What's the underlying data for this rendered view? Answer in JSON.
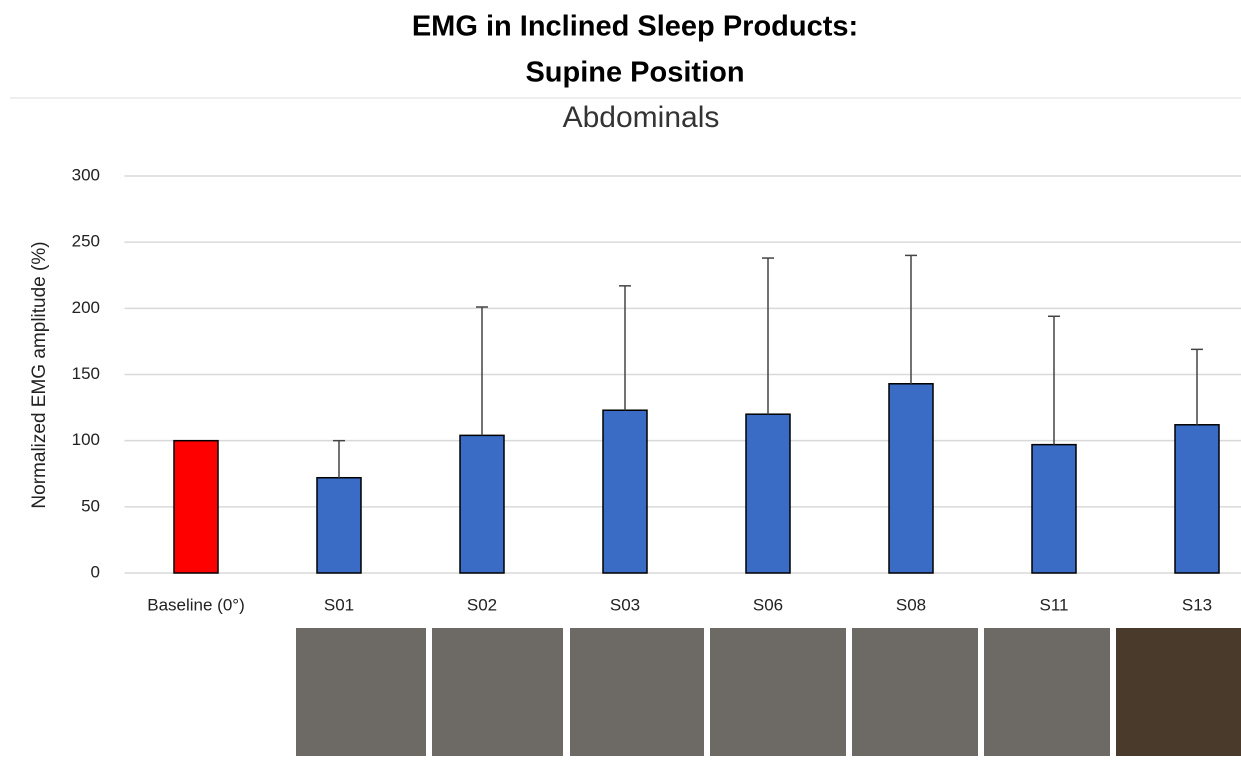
{
  "chart_data": {
    "type": "bar",
    "title": [
      "EMG in Inclined Sleep Products:",
      "Supine Position"
    ],
    "subtitle": "Abdominals",
    "y_label": "Normalized EMG amplitude (%)",
    "categories": [
      "Baseline (0°)",
      "S01",
      "S02",
      "S03",
      "S06",
      "S08",
      "S11",
      "S13"
    ],
    "values": [
      100,
      72,
      104,
      123,
      120,
      143,
      97,
      112
    ],
    "errors": [
      null,
      28,
      97,
      94,
      118,
      97,
      97,
      57
    ],
    "colors": [
      "#ff0000",
      "#3a6cc6",
      "#3a6cc6",
      "#3a6cc6",
      "#3a6cc6",
      "#3a6cc6",
      "#3a6cc6",
      "#3a6cc6"
    ],
    "ylim": [
      0,
      300
    ],
    "yticks": [
      0,
      50,
      100,
      150,
      200,
      250,
      300
    ],
    "grid": true
  }
}
